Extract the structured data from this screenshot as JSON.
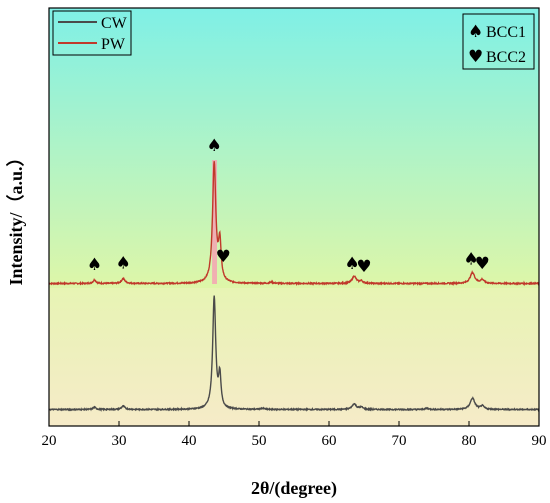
{
  "chart_data": {
    "type": "line",
    "xlabel": "2θ/(degree)",
    "ylabel": "Intensity/（a.u.）",
    "xlim": [
      20,
      90
    ],
    "xticks": [
      20,
      30,
      40,
      50,
      60,
      70,
      80,
      90
    ],
    "yaxis_ticks": false,
    "grid": false,
    "background": {
      "upper_gradient": [
        "#7ff0e6",
        "#def6a8"
      ],
      "lower_gradient": [
        "#e7f4b4",
        "#f6ebc8"
      ],
      "highlight_band_color": "#f4a3b3"
    },
    "legend": {
      "placement": "top-left",
      "entries": [
        {
          "label": "CW",
          "color": "#4a4a4a"
        },
        {
          "label": "PW",
          "color": "#c0392b"
        }
      ]
    },
    "phase_legend": {
      "placement": "top-right",
      "entries": [
        {
          "symbol": "♠",
          "label": "BCC1"
        },
        {
          "symbol": "♥",
          "label": "BCC2"
        }
      ]
    },
    "series": [
      {
        "name": "PW",
        "color": "#c0392b",
        "baseline": 0,
        "peaks": [
          {
            "x": 26.5,
            "height": 3,
            "width": 0.25
          },
          {
            "x": 30.6,
            "height": 4,
            "width": 0.3
          },
          {
            "x": 43.6,
            "height": 100,
            "width": 0.28
          },
          {
            "x": 44.4,
            "height": 32,
            "width": 0.22
          },
          {
            "x": 51.8,
            "height": 1,
            "width": 0.3
          },
          {
            "x": 63.6,
            "height": 6,
            "width": 0.35
          },
          {
            "x": 64.6,
            "height": 2,
            "width": 0.3
          },
          {
            "x": 80.5,
            "height": 9,
            "width": 0.4
          },
          {
            "x": 81.9,
            "height": 3,
            "width": 0.3
          }
        ]
      },
      {
        "name": "CW",
        "color": "#4a4a4a",
        "baseline": 0,
        "peaks": [
          {
            "x": 26.5,
            "height": 2,
            "width": 0.25
          },
          {
            "x": 30.6,
            "height": 3,
            "width": 0.3
          },
          {
            "x": 43.6,
            "height": 100,
            "width": 0.26
          },
          {
            "x": 44.4,
            "height": 28,
            "width": 0.2
          },
          {
            "x": 50.5,
            "height": 1,
            "width": 0.3
          },
          {
            "x": 63.6,
            "height": 5,
            "width": 0.35
          },
          {
            "x": 64.6,
            "height": 2,
            "width": 0.3
          },
          {
            "x": 74.0,
            "height": 1,
            "width": 0.3
          },
          {
            "x": 80.5,
            "height": 10,
            "width": 0.4
          },
          {
            "x": 81.9,
            "height": 3,
            "width": 0.3
          }
        ]
      }
    ],
    "annotations": [
      {
        "symbol": "♠",
        "x": 26.5,
        "series": "PW"
      },
      {
        "symbol": "♠",
        "x": 30.6,
        "series": "PW"
      },
      {
        "symbol": "♠",
        "x": 43.6,
        "series": "PW"
      },
      {
        "symbol": "♥",
        "x": 44.9,
        "series": "PW"
      },
      {
        "symbol": "♠",
        "x": 63.3,
        "series": "PW"
      },
      {
        "symbol": "♥",
        "x": 65.0,
        "series": "PW"
      },
      {
        "symbol": "♠",
        "x": 80.3,
        "series": "PW"
      },
      {
        "symbol": "♥",
        "x": 81.9,
        "series": "PW"
      }
    ]
  }
}
